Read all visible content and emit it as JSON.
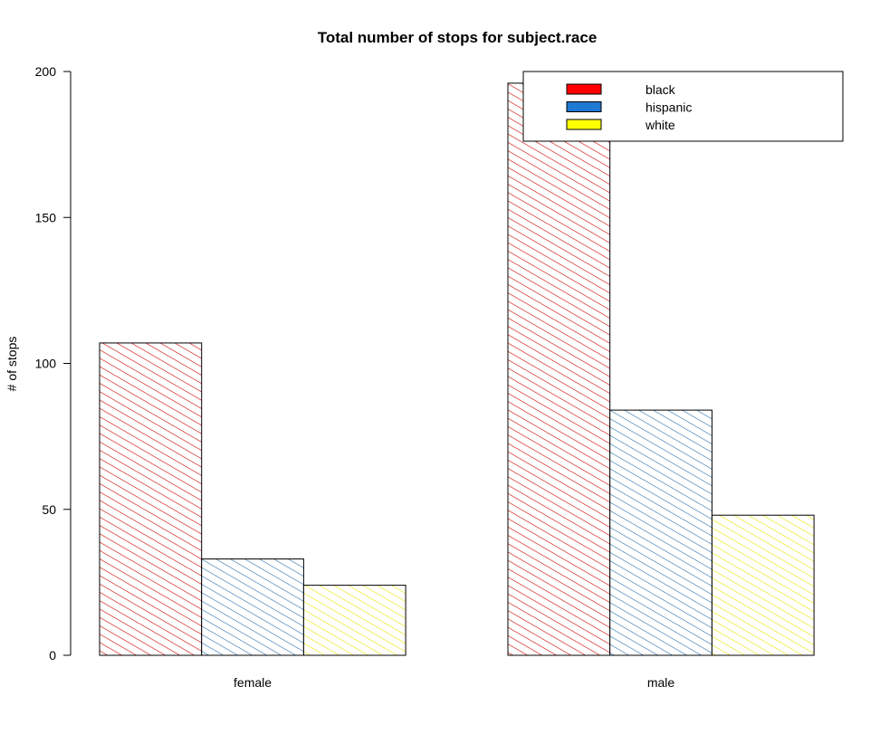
{
  "chart_data": {
    "type": "bar",
    "title": "Total number of stops for subject.race",
    "xlabel": "",
    "ylabel": "# of stops",
    "categories": [
      "female",
      "male"
    ],
    "series": [
      {
        "name": "black",
        "color": "#ff0000",
        "stroke": "#cc0000",
        "values": [
          107,
          196
        ]
      },
      {
        "name": "hispanic",
        "color": "#1f78d1",
        "stroke": "#2a6fb0",
        "values": [
          33,
          84
        ]
      },
      {
        "name": "white",
        "color": "#ffff00",
        "stroke": "#e6e600",
        "values": [
          24,
          48
        ]
      }
    ],
    "ylim": [
      0,
      200
    ],
    "yticks": [
      "0",
      "50",
      "100",
      "150",
      "200"
    ],
    "grid": false,
    "legend_position": "top-right",
    "fill_style": "hatched"
  }
}
